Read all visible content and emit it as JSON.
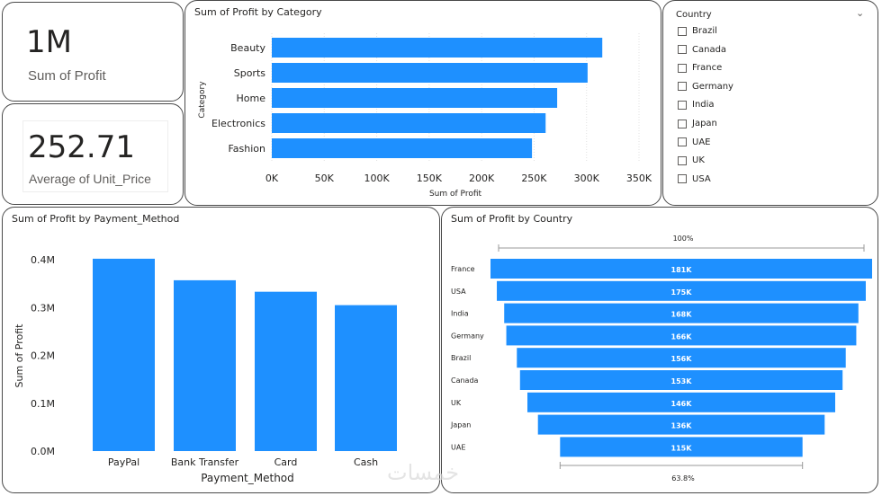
{
  "kpi_profit": {
    "value": "1M",
    "label": "Sum of Profit"
  },
  "kpi_price": {
    "value": "252.71",
    "label": "Average of Unit_Price"
  },
  "slicer": {
    "title": "Country",
    "items": [
      "Brazil",
      "Canada",
      "France",
      "Germany",
      "India",
      "Japan",
      "UAE",
      "UK",
      "USA"
    ]
  },
  "watermark": "خمسات",
  "colors": {
    "bar": "#1e90ff",
    "text": "#252423",
    "axis": "#605e5c"
  },
  "chart_data": [
    {
      "id": "category",
      "type": "bar",
      "orientation": "horizontal",
      "title": "Sum of Profit by Category",
      "xlabel": "Sum of Profit",
      "ylabel": "Category",
      "categories": [
        "Beauty",
        "Sports",
        "Home",
        "Electronics",
        "Fashion"
      ],
      "values": [
        315000,
        301000,
        272000,
        261000,
        248000
      ],
      "ticks": [
        "0K",
        "50K",
        "100K",
        "150K",
        "200K",
        "250K",
        "300K",
        "350K"
      ],
      "xlim": [
        0,
        350000
      ]
    },
    {
      "id": "payment",
      "type": "bar",
      "orientation": "vertical",
      "title": "Sum of Profit by Payment_Method",
      "xlabel": "Payment_Method",
      "ylabel": "Sum of Profit",
      "categories": [
        "PayPal",
        "Bank Transfer",
        "Card",
        "Cash"
      ],
      "values": [
        402000,
        357000,
        333000,
        305000
      ],
      "ticks": [
        "0.0M",
        "0.1M",
        "0.2M",
        "0.3M",
        "0.4M"
      ],
      "ylim": [
        0,
        400000
      ]
    },
    {
      "id": "country",
      "type": "funnel",
      "title": "Sum of Profit by Country",
      "categories": [
        "France",
        "USA",
        "India",
        "Germany",
        "Brazil",
        "Canada",
        "UK",
        "Japan",
        "UAE"
      ],
      "values": [
        181000,
        175000,
        168000,
        166000,
        156000,
        153000,
        146000,
        136000,
        115000
      ],
      "labels": [
        "181K",
        "175K",
        "168K",
        "166K",
        "156K",
        "153K",
        "146K",
        "136K",
        "115K"
      ],
      "top_label": "100%",
      "bottom_label": "63.8%"
    }
  ]
}
